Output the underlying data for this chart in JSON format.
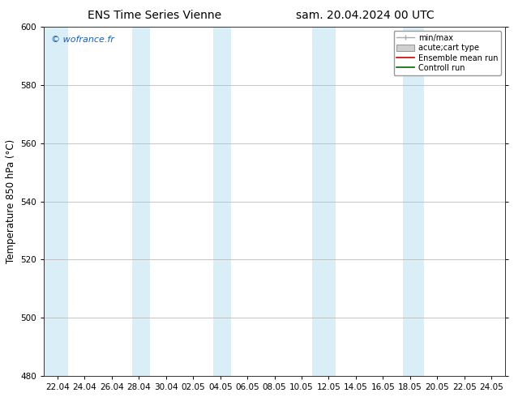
{
  "title_left": "ENS Time Series Vienne",
  "title_right": "sam. 20.04.2024 00 UTC",
  "ylabel": "Temperature 850 hPa (°C)",
  "ylim": [
    480,
    600
  ],
  "yticks": [
    480,
    500,
    520,
    540,
    560,
    580,
    600
  ],
  "x_labels": [
    "22.04",
    "24.04",
    "26.04",
    "28.04",
    "30.04",
    "02.05",
    "04.05",
    "06.05",
    "08.05",
    "10.05",
    "12.05",
    "14.05",
    "16.05",
    "18.05",
    "20.05",
    "22.05",
    "24.05"
  ],
  "x_positions": [
    0,
    2,
    4,
    6,
    8,
    10,
    12,
    14,
    16,
    18,
    20,
    22,
    24,
    26,
    28,
    30,
    32
  ],
  "xlim": [
    -1,
    33
  ],
  "watermark": "© wofrance.fr",
  "watermark_color": "#1a5fb4",
  "shaded_bands": [
    {
      "x_start": -1.0,
      "x_end": 0.8,
      "color": "#daeef8"
    },
    {
      "x_start": 5.5,
      "x_end": 6.8,
      "color": "#daeef8"
    },
    {
      "x_start": 11.5,
      "x_end": 12.8,
      "color": "#daeef8"
    },
    {
      "x_start": 18.8,
      "x_end": 20.5,
      "color": "#daeef8"
    },
    {
      "x_start": 25.5,
      "x_end": 27.0,
      "color": "#daeef8"
    }
  ],
  "legend_items": [
    {
      "label": "min/max",
      "type": "errorbar",
      "color": "#aaaaaa"
    },
    {
      "label": "acute;cart type",
      "type": "box",
      "facecolor": "#d0d0d0",
      "edgecolor": "#888888"
    },
    {
      "label": "Ensemble mean run",
      "type": "line",
      "color": "#cc0000"
    },
    {
      "label": "Controll run",
      "type": "line",
      "color": "#006600"
    }
  ],
  "background_color": "#ffffff",
  "plot_bg_color": "#ffffff",
  "grid_color": "#bbbbbb",
  "title_fontsize": 10,
  "tick_fontsize": 7.5,
  "ylabel_fontsize": 8.5,
  "legend_fontsize": 7,
  "watermark_fontsize": 8
}
